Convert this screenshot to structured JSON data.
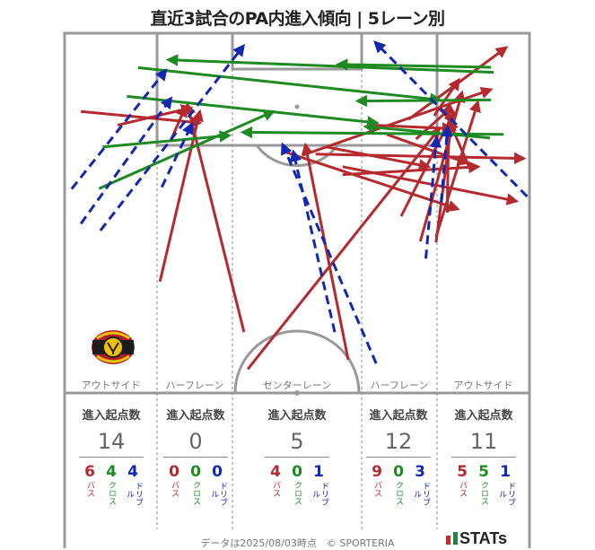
{
  "title": "直近3試合のPA内進入傾向 | 5レーン別",
  "lanes": [
    "アウトサイド",
    "ハーフレーン",
    "センターレーン",
    "ハーフレーン",
    "アウトサイド"
  ],
  "zones": [
    {
      "header": "進入起点数",
      "total": "14",
      "pass": "6",
      "cross": "4",
      "dribble": "4"
    },
    {
      "header": "進入起点数",
      "total": "0",
      "pass": "0",
      "cross": "0",
      "dribble": "0"
    },
    {
      "header": "進入起点数",
      "total": "5",
      "pass": "4",
      "cross": "0",
      "dribble": "1"
    },
    {
      "header": "進入起点数",
      "total": "12",
      "pass": "9",
      "cross": "0",
      "dribble": "3"
    },
    {
      "header": "進入起点数",
      "total": "11",
      "pass": "5",
      "cross": "5",
      "dribble": "1"
    }
  ],
  "labels": {
    "pass": "パス",
    "cross": "クロス",
    "dribble": "ドリブル"
  },
  "footer": "データは2025/08/03時点　© SPORTERIA",
  "brand": "STATs",
  "crest_name": "KASHIMA ANTLERS",
  "colors": {
    "pass": "#b42a2e",
    "cross": "#1e8a22",
    "dribble": "#1228b4",
    "lines": "#999999"
  },
  "chart_data": {
    "type": "arrow-map",
    "note_units": "pitch coordinates: x = width across pitch (0-100, left to right), y = distance from goal line (0-100, 0 = goal line)",
    "arrows": [
      {
        "kind": "pass",
        "x0": 20.5,
        "y0": 69.2,
        "x1": 29.1,
        "y1": 21.8
      },
      {
        "kind": "pass",
        "x0": 3.5,
        "y0": 21.8,
        "x1": 29.1,
        "y1": 25.0
      },
      {
        "kind": "pass",
        "x0": 11.4,
        "y0": 25.6,
        "x1": 27.2,
        "y1": 20.8
      },
      {
        "kind": "pass",
        "x0": 23.0,
        "y0": 29.4,
        "x1": 26.0,
        "y1": 20.5
      },
      {
        "kind": "pass",
        "x0": 38.6,
        "y0": 83.3,
        "x1": 26.4,
        "y1": 19.9
      },
      {
        "kind": "pass",
        "x0": 61.0,
        "y0": 91.0,
        "x1": 51.8,
        "y1": 31.1
      },
      {
        "kind": "pass",
        "x0": 39.4,
        "y0": 93.6,
        "x1": 80.6,
        "y1": 26.6
      },
      {
        "kind": "pass",
        "x0": 47.2,
        "y0": 33.0,
        "x1": 84.6,
        "y1": 49.0
      },
      {
        "kind": "pass",
        "x0": 59.8,
        "y0": 37.2,
        "x1": 97.2,
        "y1": 46.8
      },
      {
        "kind": "pass",
        "x0": 59.8,
        "y0": 39.4,
        "x1": 89.0,
        "y1": 37.2
      },
      {
        "kind": "pass",
        "x0": 72.4,
        "y0": 51.0,
        "x1": 83.7,
        "y1": 22.1
      },
      {
        "kind": "pass",
        "x0": 79.9,
        "y0": 58.3,
        "x1": 83.3,
        "y1": 24.4
      },
      {
        "kind": "pass",
        "x0": 87.2,
        "y0": 37.8,
        "x1": 82.7,
        "y1": 24.4
      },
      {
        "kind": "pass",
        "x0": 79.9,
        "y0": 56.7,
        "x1": 88.9,
        "y1": 19.2
      },
      {
        "kind": "pass",
        "x0": 82.3,
        "y0": 50.0,
        "x1": 82.7,
        "y1": 19.6
      },
      {
        "kind": "pass",
        "x0": 56.3,
        "y0": 31.7,
        "x1": 78.3,
        "y1": 37.2
      },
      {
        "kind": "pass",
        "x0": 65.8,
        "y0": 25.6,
        "x1": 83.3,
        "y1": 26.6
      },
      {
        "kind": "pass",
        "x0": 69.3,
        "y0": 28.2,
        "x1": 86.6,
        "y1": 36.2
      },
      {
        "kind": "pass",
        "x0": 54.0,
        "y0": 33.7,
        "x1": 98.8,
        "y1": 34.9
      },
      {
        "kind": "pass",
        "x0": 51.2,
        "y0": 34.0,
        "x1": 91.7,
        "y1": 15.7
      },
      {
        "kind": "pass",
        "x0": 75.6,
        "y0": 29.5,
        "x1": 83.0,
        "y1": 20.9
      },
      {
        "kind": "pass",
        "x0": 74.0,
        "y0": 24.0,
        "x1": 95.0,
        "y1": 4.0
      },
      {
        "kind": "pass",
        "x0": 79.5,
        "y0": 23.0,
        "x1": 84.8,
        "y1": 13.0
      },
      {
        "kind": "pass",
        "x0": 76.5,
        "y0": 58.0,
        "x1": 85.5,
        "y1": 16.5
      },
      {
        "kind": "cross",
        "x0": 7.4,
        "y0": 43.3,
        "x1": 44.9,
        "y1": 21.8
      },
      {
        "kind": "cross",
        "x0": 13.4,
        "y0": 17.6,
        "x1": 67.2,
        "y1": 25.0
      },
      {
        "kind": "cross",
        "x0": 15.8,
        "y0": 9.6,
        "x1": 80.7,
        "y1": 18.6
      },
      {
        "kind": "cross",
        "x0": 8.2,
        "y0": 31.7,
        "x1": 35.4,
        "y1": 28.5
      },
      {
        "kind": "cross",
        "x0": 92.3,
        "y0": 10.9,
        "x1": 22.3,
        "y1": 7.4
      },
      {
        "kind": "cross",
        "x0": 91.7,
        "y0": 9.5,
        "x1": 58.8,
        "y1": 8.7
      },
      {
        "kind": "cross",
        "x0": 91.7,
        "y0": 18.6,
        "x1": 63.0,
        "y1": 18.9
      },
      {
        "kind": "cross",
        "x0": 94.4,
        "y0": 28.2,
        "x1": 38.3,
        "y1": 27.6
      },
      {
        "kind": "cross",
        "x0": 91.5,
        "y0": 29.2,
        "x1": 64.7,
        "y1": 26.0
      },
      {
        "kind": "dribble",
        "x0": 1.5,
        "y0": 43.4,
        "x1": 21.8,
        "y1": 10.3
      },
      {
        "kind": "dribble",
        "x0": 3.5,
        "y0": 53.1,
        "x1": 22.9,
        "y1": 18.1
      },
      {
        "kind": "dribble",
        "x0": 7.7,
        "y0": 55.0,
        "x1": 38.5,
        "y1": 3.5
      },
      {
        "kind": "dribble",
        "x0": 20.9,
        "y0": 42.9,
        "x1": 27.4,
        "y1": 25.3
      },
      {
        "kind": "dribble",
        "x0": 67.0,
        "y0": 92.0,
        "x1": 46.9,
        "y1": 31.0
      },
      {
        "kind": "dribble",
        "x0": 58.1,
        "y0": 83.3,
        "x1": 49.2,
        "y1": 33.0
      },
      {
        "kind": "dribble",
        "x0": 99.5,
        "y0": 45.5,
        "x1": 66.8,
        "y1": 2.5
      },
      {
        "kind": "dribble",
        "x0": 77.7,
        "y0": 62.8,
        "x1": 80.0,
        "y1": 29.1
      },
      {
        "kind": "dribble",
        "x0": 81.0,
        "y0": 47.1,
        "x1": 82.4,
        "y1": 26.1
      }
    ]
  }
}
